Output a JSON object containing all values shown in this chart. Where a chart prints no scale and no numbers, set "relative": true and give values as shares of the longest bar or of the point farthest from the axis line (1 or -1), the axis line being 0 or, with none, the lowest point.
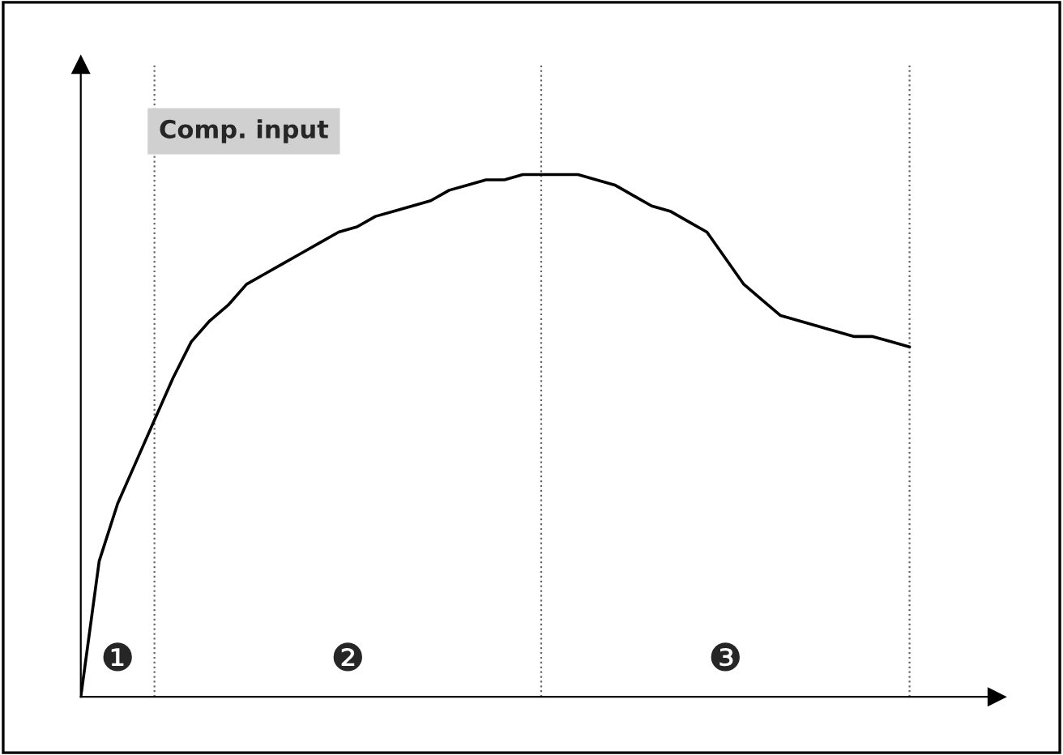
{
  "chart_data": {
    "type": "line",
    "relative": true,
    "grid": "x",
    "legend": false,
    "marker": "none",
    "line_style": "solid",
    "categories": [
      null,
      null,
      null,
      null,
      null,
      null,
      null,
      null,
      null,
      null,
      null,
      null,
      null,
      null,
      null,
      null,
      null,
      null,
      null,
      null,
      null,
      null,
      null,
      null,
      null,
      null,
      null,
      null,
      null,
      null,
      null,
      null,
      null,
      null,
      null,
      null,
      null,
      null,
      null,
      null,
      null,
      null,
      null,
      null,
      null,
      null
    ],
    "series": [
      {
        "color": "#000000",
        "values": [
          0,
          0.26,
          0.37,
          0.45,
          0.53,
          0.61,
          0.68,
          0.72,
          0.75,
          0.79,
          0.81,
          0.83,
          0.85,
          0.87,
          0.89,
          0.9,
          0.92,
          0.93,
          0.94,
          0.95,
          0.97,
          0.98,
          0.99,
          0.99,
          1,
          1,
          1,
          1,
          0.99,
          0.98,
          0.96,
          0.94,
          0.93,
          0.91,
          0.89,
          0.84,
          0.79,
          0.76,
          0.73,
          0.72,
          0.71,
          0.7,
          0.69,
          0.69,
          0.68,
          0.67
        ]
      }
    ],
    "annotations": [
      "Comp. input",
      "❶",
      "❷",
      "❸"
    ]
  }
}
